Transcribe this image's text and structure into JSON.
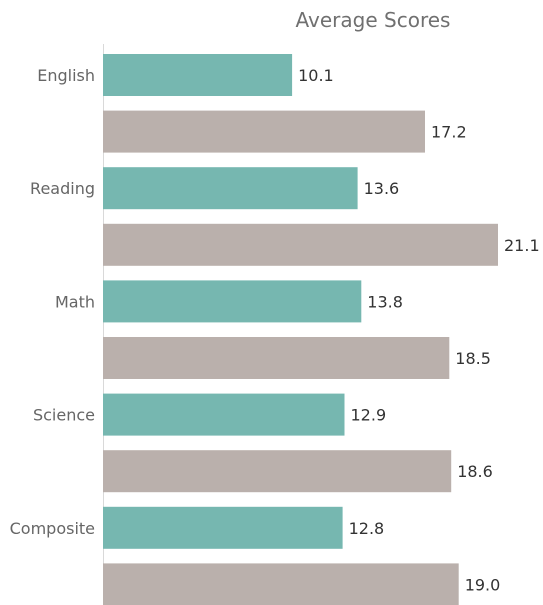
{
  "chart_data": {
    "type": "bar",
    "orientation": "horizontal",
    "title": "Average Scores",
    "categories": [
      "English",
      "Reading",
      "Math",
      "Science",
      "Composite"
    ],
    "series": [
      {
        "color": "#76b7b0",
        "values": [
          10.1,
          13.6,
          13.8,
          12.9,
          12.8
        ],
        "labels": [
          "10.1",
          "13.6",
          "13.8",
          "12.9",
          "12.8"
        ]
      },
      {
        "color": "#bab0ac",
        "values": [
          17.2,
          21.1,
          18.5,
          18.6,
          19.0
        ],
        "labels": [
          "17.2",
          "21.1",
          "18.5",
          "18.6",
          "19.0"
        ]
      }
    ],
    "xlim": [
      0,
      21.1
    ],
    "grid": false,
    "legend": "none",
    "axis_line_color": "#d9d9d9"
  }
}
